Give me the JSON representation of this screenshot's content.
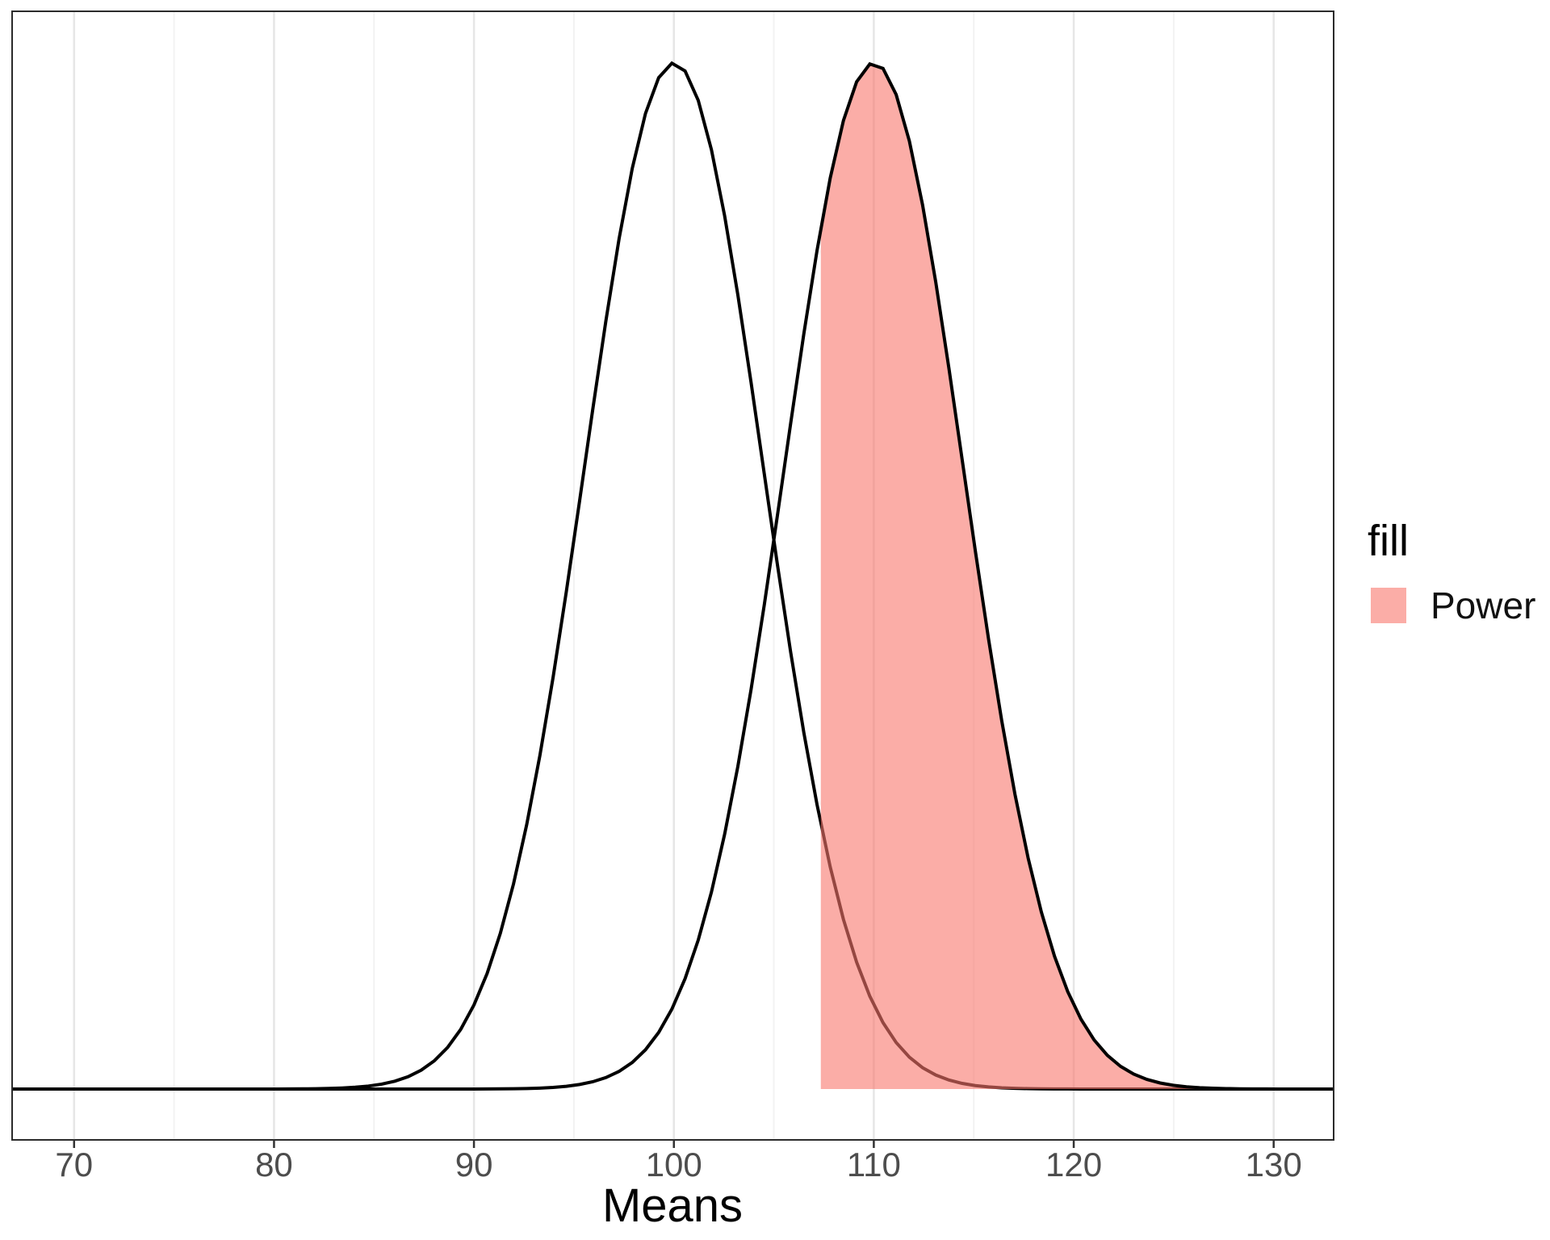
{
  "chart_data": {
    "type": "area",
    "title": "",
    "xlabel": "Means",
    "ylabel": "",
    "x_ticks": [
      70,
      80,
      90,
      100,
      110,
      120,
      130
    ],
    "x_minor_ticks": [
      75,
      85,
      95,
      105,
      115,
      125
    ],
    "xlim": [
      66.9,
      133.0
    ],
    "ylim": [
      0,
      0.094
    ],
    "grid": "vertical-only",
    "curves": [
      {
        "name": "null-distribution",
        "mean": 100,
        "sd": 4.47,
        "stroke": "#000000",
        "fill": "none"
      },
      {
        "name": "alternative-distribution",
        "mean": 110,
        "sd": 4.47,
        "stroke": "#000000",
        "fill": "none"
      }
    ],
    "shaded_region": {
      "label": "Power",
      "curve": "alternative-distribution",
      "x_from": 107.35,
      "x_to": 133.0,
      "fill": "#F8766D",
      "fill_opacity": 0.6
    },
    "legend": {
      "title": "fill",
      "position": "right",
      "items": [
        {
          "label": "Power",
          "swatch_color": "#F8766D",
          "swatch_opacity": 0.6
        }
      ]
    },
    "colors": {
      "curve_stroke": "#000000",
      "grid_major": "#E6E6E6",
      "grid_minor": "#F2F2F2",
      "panel_border": "#2B2B2B",
      "axis_tick": "#333333",
      "tick_label_color": "#4d4d4d",
      "axis_title_color": "#000000"
    }
  }
}
